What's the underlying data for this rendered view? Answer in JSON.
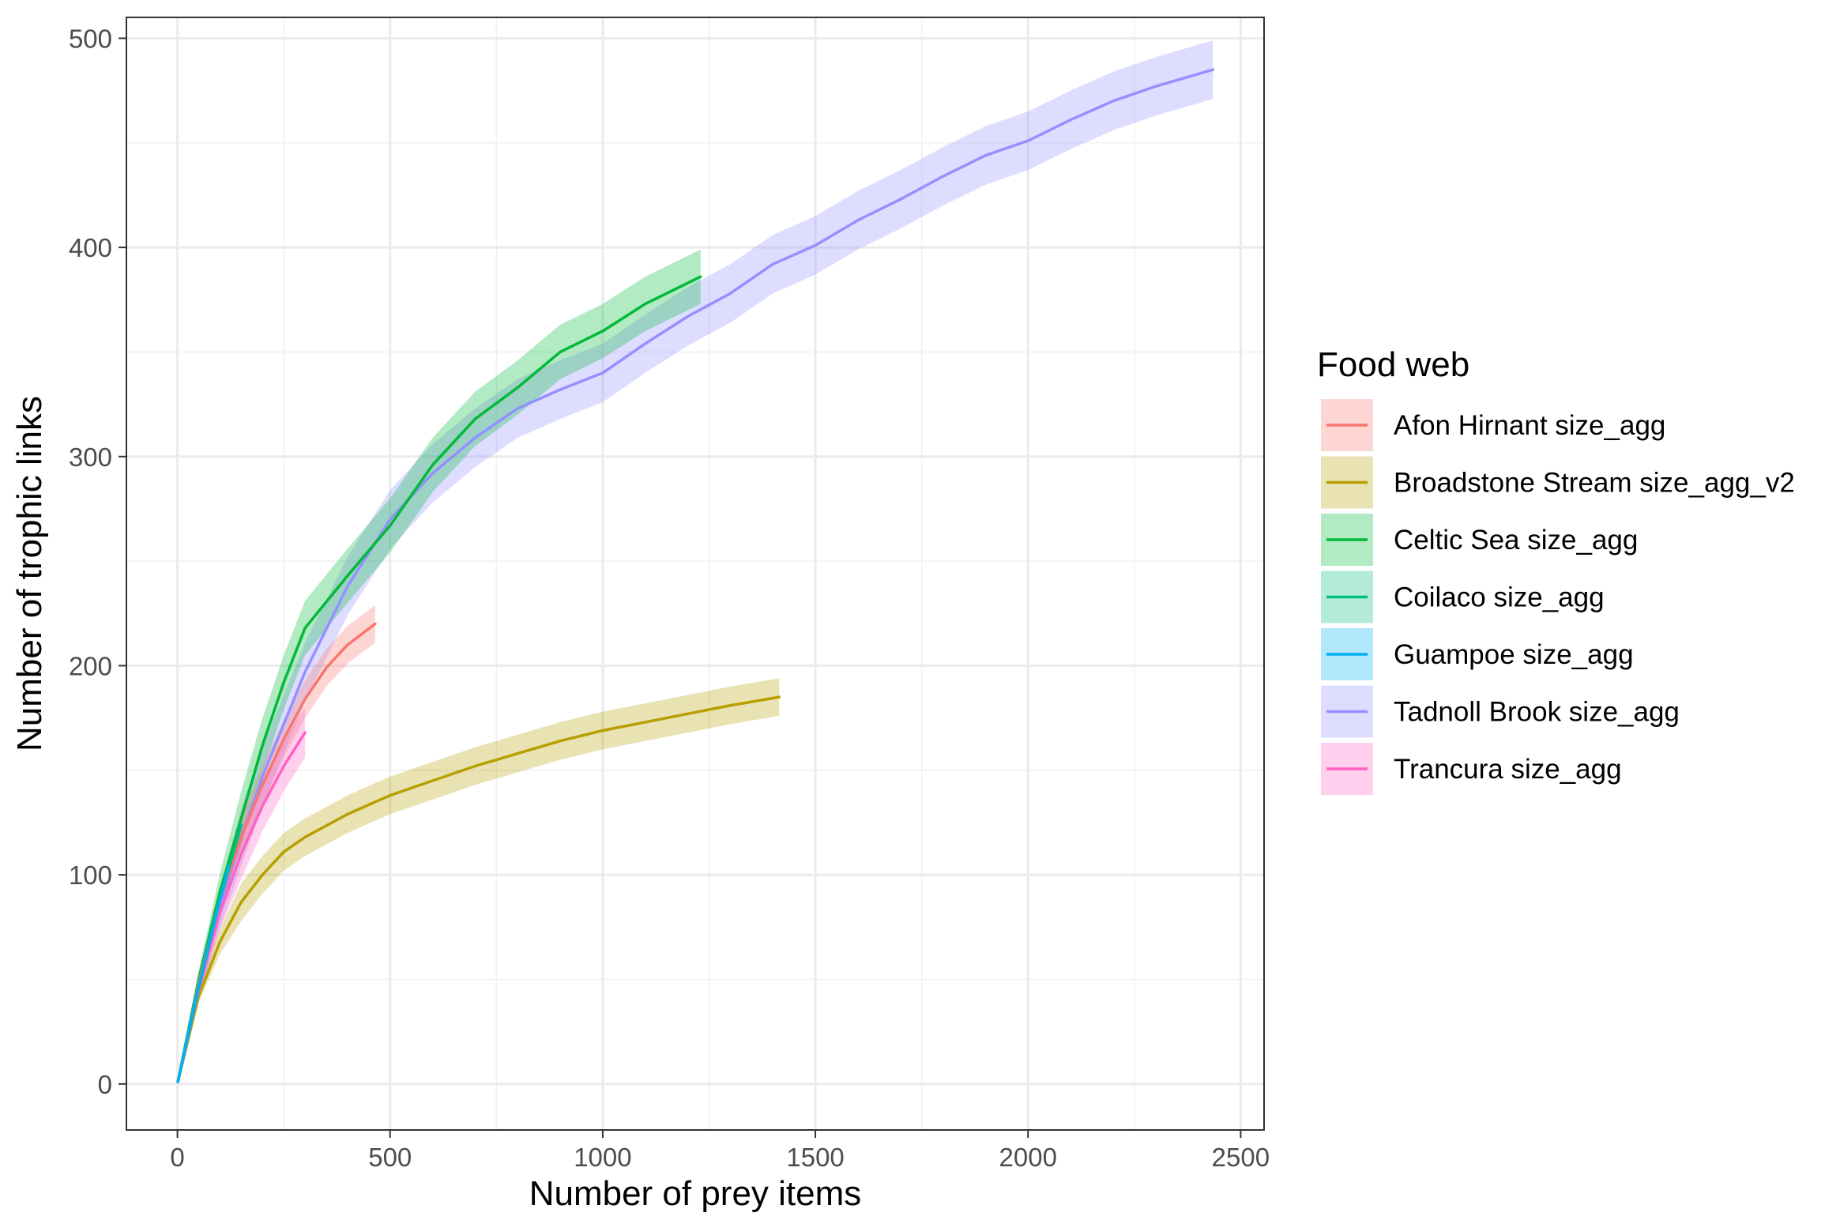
{
  "chart_data": {
    "type": "line",
    "xlabel": "Number of prey items",
    "ylabel": "Number of trophic links",
    "xlim": [
      -120,
      2555
    ],
    "ylim": [
      -22,
      510
    ],
    "x_ticks": [
      0,
      500,
      1000,
      1500,
      2000,
      2500
    ],
    "y_ticks": [
      0,
      100,
      200,
      300,
      400,
      500
    ],
    "grid": true,
    "legend": {
      "title": "Food web",
      "placement": "right"
    },
    "series": [
      {
        "name": "Broadstone Stream size_agg_v2",
        "color": "#B79F00",
        "x": [
          1,
          50,
          100,
          150,
          200,
          250,
          300,
          400,
          500,
          600,
          700,
          800,
          900,
          1000,
          1100,
          1200,
          1300,
          1415
        ],
        "y": [
          1,
          42,
          68,
          87,
          100,
          111,
          118,
          129,
          138,
          145,
          152,
          158,
          164,
          169,
          173,
          177,
          181,
          185
        ],
        "band": 9
      },
      {
        "name": "Tadnoll Brook size_agg",
        "color": "#9590FF",
        "x": [
          1,
          50,
          100,
          150,
          200,
          300,
          400,
          500,
          600,
          700,
          800,
          900,
          1000,
          1100,
          1200,
          1300,
          1400,
          1500,
          1600,
          1700,
          1800,
          1900,
          2000,
          2100,
          2200,
          2300,
          2435
        ],
        "y": [
          1,
          45,
          84,
          118,
          147,
          197,
          238,
          270,
          292,
          309,
          323,
          332,
          340,
          354,
          367,
          378,
          392,
          401,
          413,
          423,
          434,
          444,
          451,
          461,
          470,
          477,
          485
        ],
        "band": 14
      },
      {
        "name": "Celtic Sea size_agg",
        "color": "#00BA38",
        "x": [
          1,
          50,
          100,
          150,
          200,
          250,
          300,
          400,
          500,
          600,
          700,
          800,
          900,
          1000,
          1100,
          1230
        ],
        "y": [
          1,
          50,
          92,
          127,
          162,
          192,
          218,
          243,
          267,
          296,
          318,
          333,
          350,
          360,
          373,
          386
        ],
        "band": 13
      },
      {
        "name": "Afon Hirnant size_agg",
        "color": "#F8766D",
        "x": [
          1,
          50,
          100,
          150,
          200,
          250,
          300,
          350,
          400,
          465
        ],
        "y": [
          1,
          48,
          88,
          118,
          143,
          165,
          184,
          199,
          210,
          220
        ],
        "band": 9
      },
      {
        "name": "Trancura size_agg",
        "color": "#FF61C3",
        "x": [
          1,
          50,
          100,
          150,
          200,
          250,
          300
        ],
        "y": [
          1,
          45,
          82,
          110,
          133,
          152,
          168
        ],
        "band": 12
      },
      {
        "name": "Coilaco size_agg",
        "color": "#00BF7D",
        "x": [
          1,
          50,
          100,
          150
        ],
        "y": [
          1,
          46,
          88,
          124
        ],
        "band": 4
      },
      {
        "name": "Guampoe size_agg",
        "color": "#00B0F6",
        "x": [
          1,
          40,
          80,
          120
        ],
        "y": [
          1,
          38,
          72,
          104
        ],
        "band": 4
      }
    ],
    "legend_order": [
      "Afon Hirnant size_agg",
      "Broadstone Stream size_agg_v2",
      "Celtic Sea size_agg",
      "Coilaco size_agg",
      "Guampoe size_agg",
      "Tadnoll Brook size_agg",
      "Trancura size_agg"
    ]
  }
}
